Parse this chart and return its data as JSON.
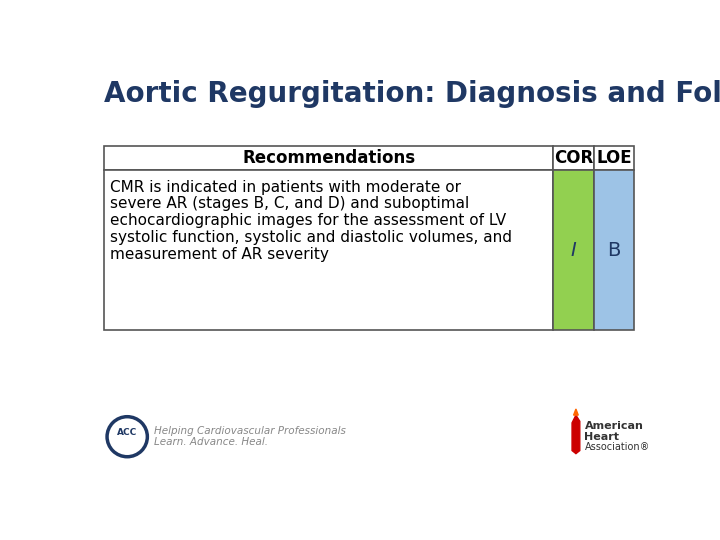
{
  "title": "Aortic Regurgitation: Diagnosis and Follow-Up",
  "title_color": "#1F3864",
  "title_fontsize": 20,
  "background_color": "#FFFFFF",
  "table": {
    "header": [
      "Recommendations",
      "COR",
      "LOE"
    ],
    "header_fontsize": 12,
    "row_text_lines": [
      "CMR is indicated in patients with moderate or",
      "severe AR (stages B, C, and D) and suboptimal",
      "echocardiographic images for the assessment of LV",
      "systolic function, systolic and diastolic volumes, and",
      "measurement of AR severity"
    ],
    "cor_value": "I",
    "loe_value": "B",
    "cor_bg": "#92D050",
    "loe_bg": "#9DC3E6",
    "header_bg": "#FFFFFF",
    "row_bg": "#FFFFFF",
    "cor_fontsize": 14,
    "loe_fontsize": 14,
    "text_fontsize": 11,
    "border_color": "#555555",
    "header_text_color": "#000000",
    "value_text_color": "#1F3864"
  },
  "footer_left_text1": "Helping Cardiovascular Professionals",
  "footer_left_text2": "Learn. Advance. Heal.",
  "footer_text_color": "#888888",
  "footer_aha_text": [
    "American",
    "Heart",
    "Association®"
  ],
  "footer_aha_color": "#333333"
}
